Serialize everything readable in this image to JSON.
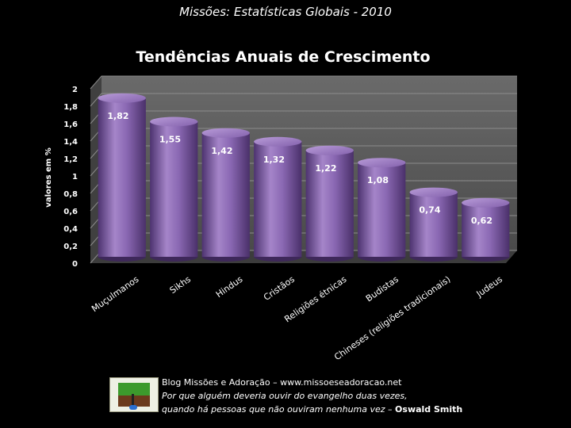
{
  "slide_title": "Missões: Estatísticas Globais - 2010",
  "footer": {
    "line1": "Blog Missões e Adoração – www.missoeseadoracao.net",
    "line2": "Por que alguém deveria ouvir do evangelho duas vezes,",
    "line3_text": "quando há pessoas que não ouviram nenhuma vez – ",
    "line3_author": "Oswald Smith",
    "logo_icon": "oil-well-field-icon"
  },
  "colors": {
    "bar": "#7d5aa6",
    "bar_light": "#a585c9",
    "bar_dark": "#4d3370",
    "wall": "#595959",
    "floor": "#3a3a3a"
  },
  "chart_data": {
    "type": "bar",
    "title": "Tendências Anuais de Crescimento",
    "ylabel": "valores em %",
    "xlabel": "",
    "ylim": [
      0,
      2
    ],
    "yticks": [
      "0",
      "0,2",
      "0,4",
      "0,6",
      "0,8",
      "1",
      "1,2",
      "1,4",
      "1,6",
      "1,8",
      "2"
    ],
    "grid": true,
    "categories": [
      "Muçulmanos",
      "Sikhs",
      "Hindus",
      "Cristãos",
      "Religiões étnicas",
      "Budistas",
      "Chineses (religiões tradicionais)",
      "Judeus"
    ],
    "values": [
      1.82,
      1.55,
      1.42,
      1.32,
      1.22,
      1.08,
      0.74,
      0.62
    ],
    "value_labels": [
      "1,82",
      "1,55",
      "1,42",
      "1,32",
      "1,22",
      "1,08",
      "0,74",
      "0,62"
    ]
  }
}
